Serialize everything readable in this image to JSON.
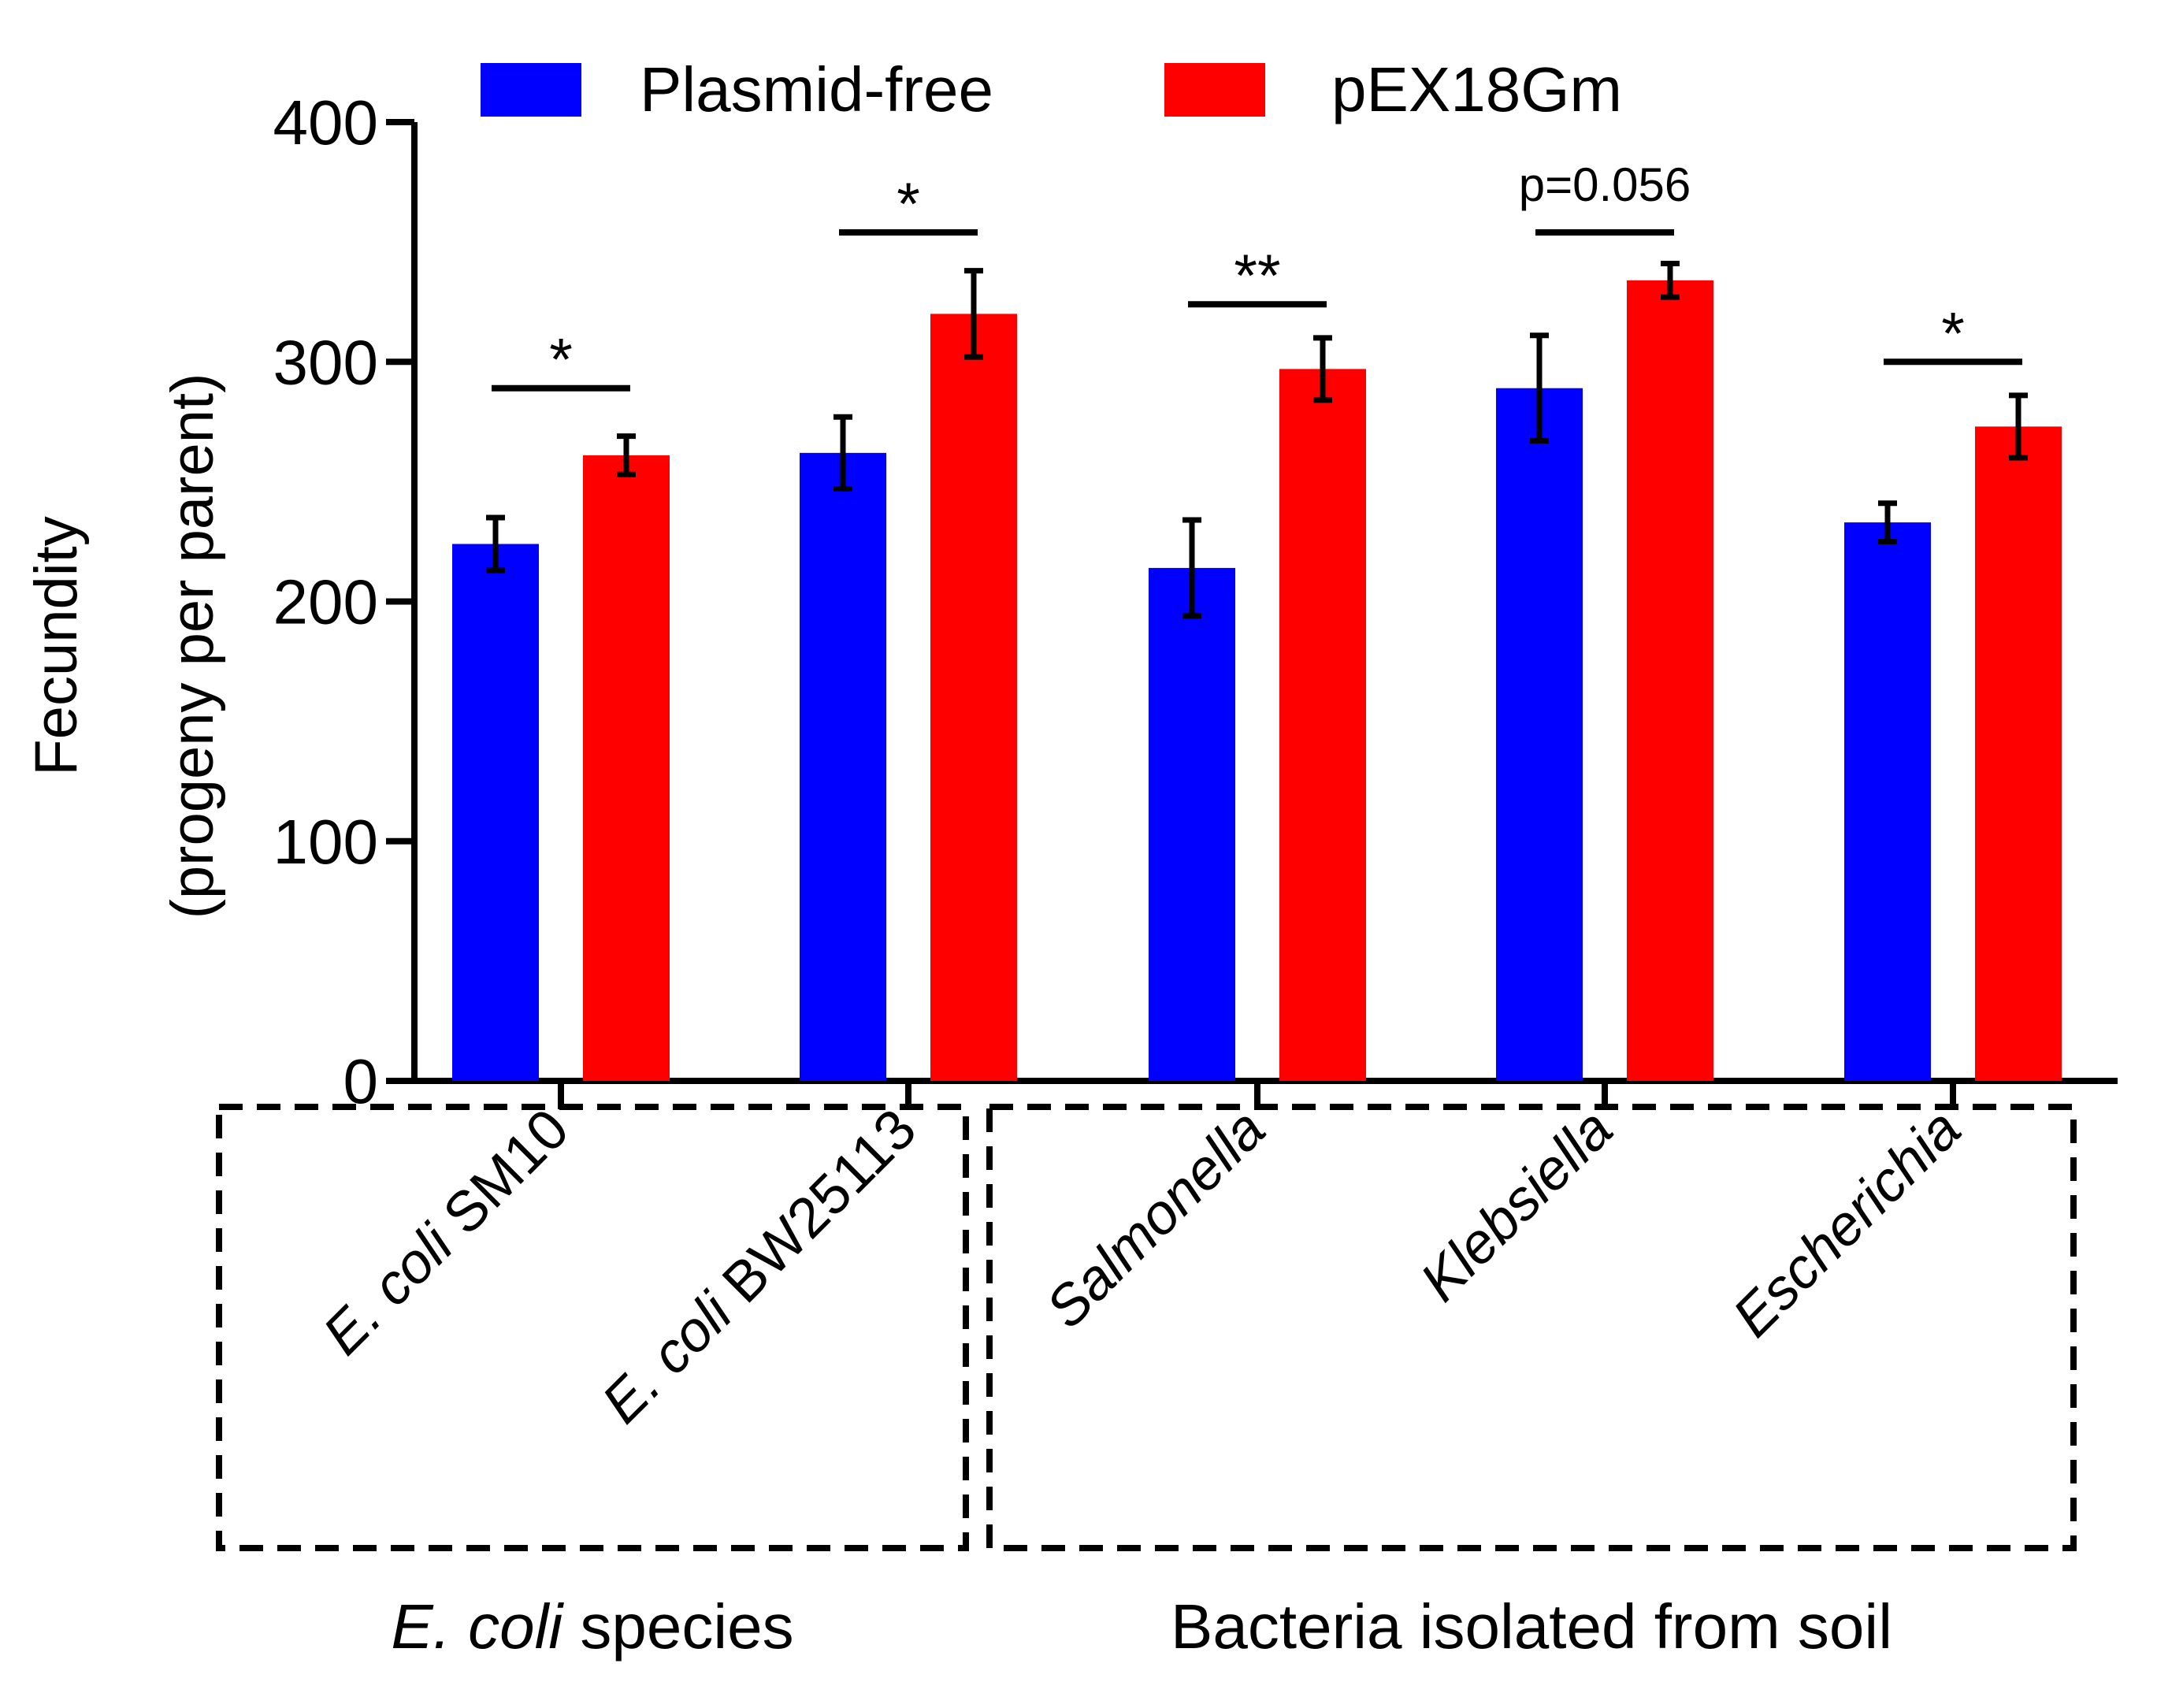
{
  "colors": {
    "plasmid_free": "#0000ff",
    "pex18gm": "#ff0000",
    "axis": "#000000"
  },
  "chart_data": {
    "type": "bar",
    "title": "",
    "ylabel_line1": "Fecundity",
    "ylabel_line2": "(progeny per parent)",
    "xlabel": "",
    "ylim": [
      0,
      400
    ],
    "yticks": [
      "0",
      "100",
      "200",
      "300",
      "400"
    ],
    "ytick_values": [
      0,
      100,
      200,
      300,
      400
    ],
    "legend_position": "top",
    "categories": [
      {
        "italic_part": "E. coli",
        "plain_part": " SM10"
      },
      {
        "italic_part": "E. coli",
        "plain_part": " BW25113"
      },
      {
        "italic_part": "Salmonella",
        "plain_part": ""
      },
      {
        "italic_part": "Klebsiella",
        "plain_part": ""
      },
      {
        "italic_part": "Escherichia",
        "plain_part": ""
      }
    ],
    "series": [
      {
        "name": "Plasmid-free",
        "values": [
          224,
          262,
          214,
          289,
          233
        ],
        "errors": [
          11,
          15,
          20,
          22,
          8
        ]
      },
      {
        "name": "pEX18Gm",
        "values": [
          261,
          320,
          297,
          334,
          273
        ],
        "errors": [
          8,
          18,
          13,
          7,
          13
        ]
      }
    ],
    "significance": [
      "*",
      "*",
      "**",
      "p=0.056",
      "*"
    ],
    "significance_levels": [
      289,
      354,
      324,
      354,
      300
    ],
    "groups": [
      {
        "italic_part": "E. coli",
        "plain_part": " species",
        "categories": [
          0,
          1
        ]
      },
      {
        "italic_part": "",
        "plain_part": "Bacteria isolated from soil",
        "categories": [
          2,
          3,
          4
        ]
      }
    ]
  }
}
